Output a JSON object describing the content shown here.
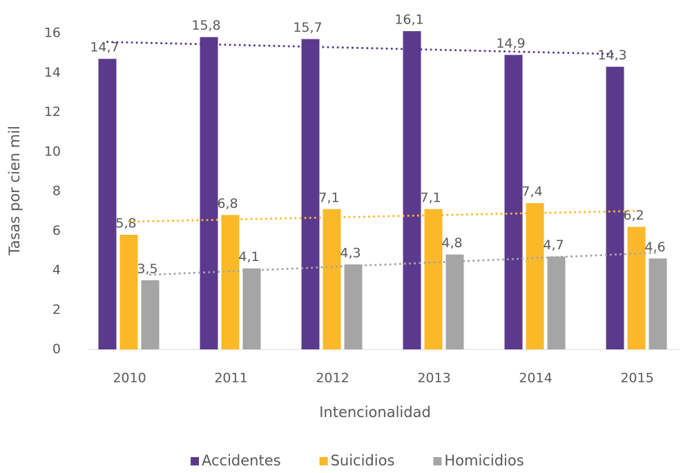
{
  "chart_data": {
    "type": "bar",
    "x_label": "Intencionalidad",
    "y_label": "Tasas por cien mil",
    "categories": [
      "2010",
      "2011",
      "2012",
      "2013",
      "2014",
      "2015"
    ],
    "series": [
      {
        "name": "Accidentes",
        "color": "#5b3a8e",
        "values": [
          14.7,
          15.8,
          15.7,
          16.1,
          14.9,
          14.3
        ],
        "value_labels": [
          "14,7",
          "15,8",
          "15,7",
          "16,1",
          "14,9",
          "14,3"
        ]
      },
      {
        "name": "Suicidios",
        "color": "#fbb829",
        "values": [
          5.8,
          6.8,
          7.1,
          7.1,
          7.4,
          6.2
        ],
        "value_labels": [
          "5,8",
          "6,8",
          "7,1",
          "7,1",
          "7,4",
          "6,2"
        ]
      },
      {
        "name": "Homicidios",
        "color": "#a5a5a5",
        "values": [
          3.5,
          4.1,
          4.3,
          4.8,
          4.7,
          4.6
        ],
        "value_labels": [
          "3,5",
          "4,1",
          "4,3",
          "4,8",
          "4,7",
          "4,6"
        ]
      }
    ],
    "trendline": true,
    "ylim": [
      0,
      16
    ],
    "yticks": [
      0,
      2,
      4,
      6,
      8,
      10,
      12,
      14,
      16
    ],
    "grid": false,
    "legend": "bottom"
  }
}
